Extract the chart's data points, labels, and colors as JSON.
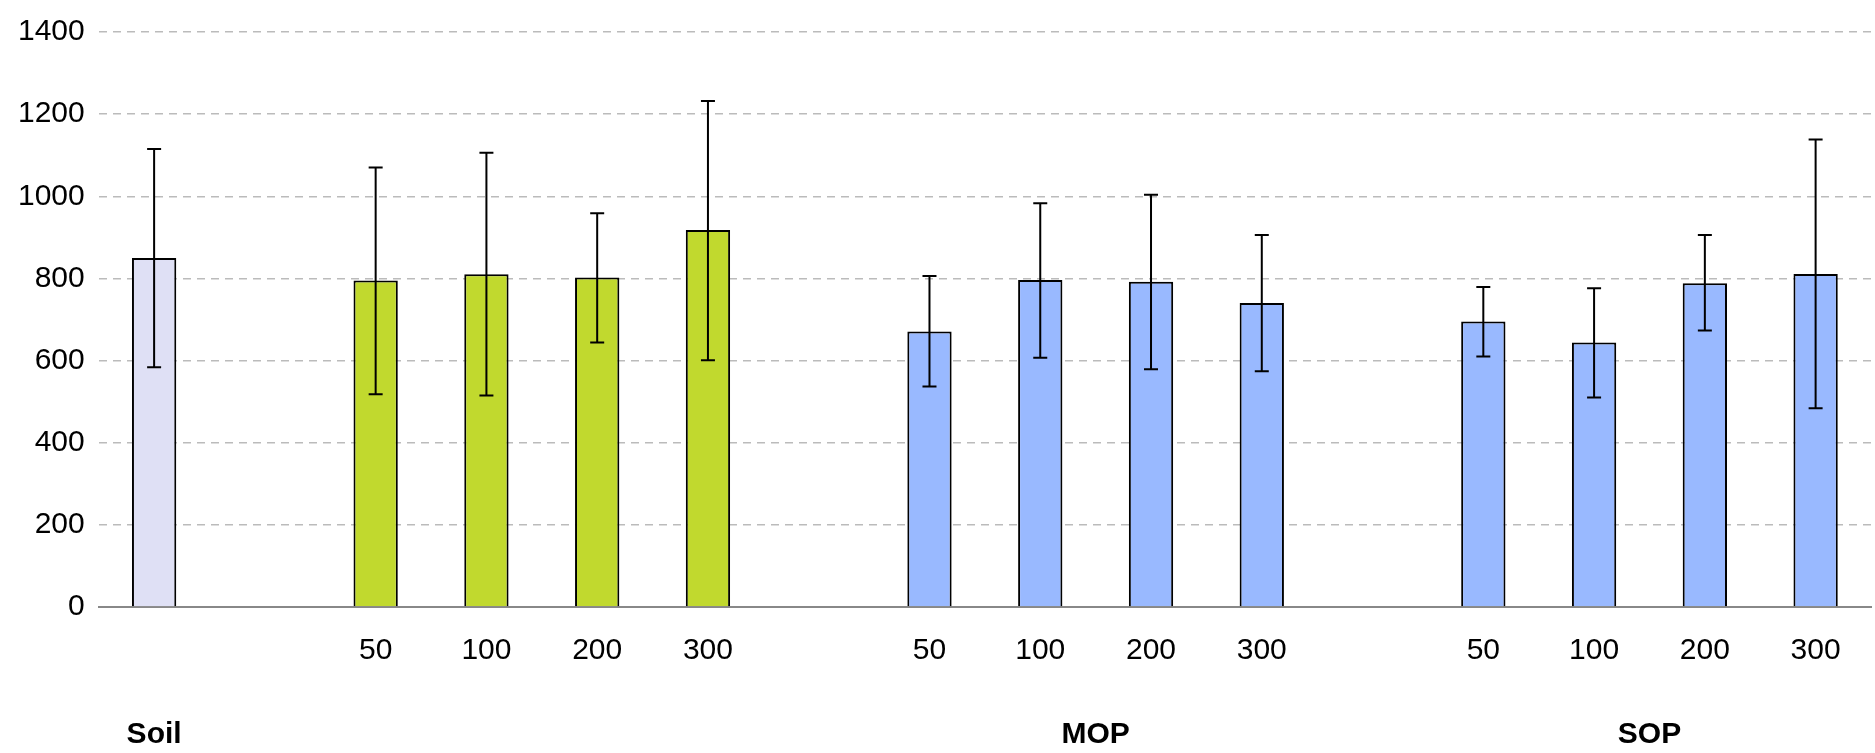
{
  "chart_data": {
    "type": "bar",
    "categories": [
      null,
      null,
      "50",
      "100",
      "200",
      "300",
      null,
      "50",
      "100",
      "200",
      "300",
      null,
      "50",
      "100",
      "200",
      "300"
    ],
    "values": [
      850,
      null,
      795,
      810,
      802,
      918,
      null,
      671,
      796,
      792,
      740,
      null,
      695,
      644,
      788,
      811
    ],
    "errors": [
      [
        584,
        1115
      ],
      null,
      [
        518,
        1070
      ],
      [
        515,
        1106
      ],
      [
        644,
        959
      ],
      [
        601,
        1232
      ],
      null,
      [
        537,
        806
      ],
      [
        607,
        983
      ],
      [
        579,
        1004
      ],
      [
        574,
        906
      ],
      null,
      [
        610,
        779
      ],
      [
        510,
        776
      ],
      [
        673,
        906
      ],
      [
        484,
        1138
      ]
    ],
    "colors": [
      "#dfe0f5",
      null,
      "#c1d92e",
      "#c1d92e",
      "#c1d92e",
      "#c1d92e",
      null,
      "#99b9ff",
      "#99b9ff",
      "#99b9ff",
      "#99b9ff",
      null,
      "#99b9ff",
      "#99b9ff",
      "#99b9ff",
      "#99b9ff"
    ],
    "ylim": [
      0,
      1400
    ],
    "yticks": [
      0,
      200,
      400,
      600,
      800,
      1000,
      1200,
      1400
    ],
    "grid": "y",
    "legend": false,
    "annotations": [
      "Soil",
      null,
      "MOP",
      "SOP"
    ]
  }
}
